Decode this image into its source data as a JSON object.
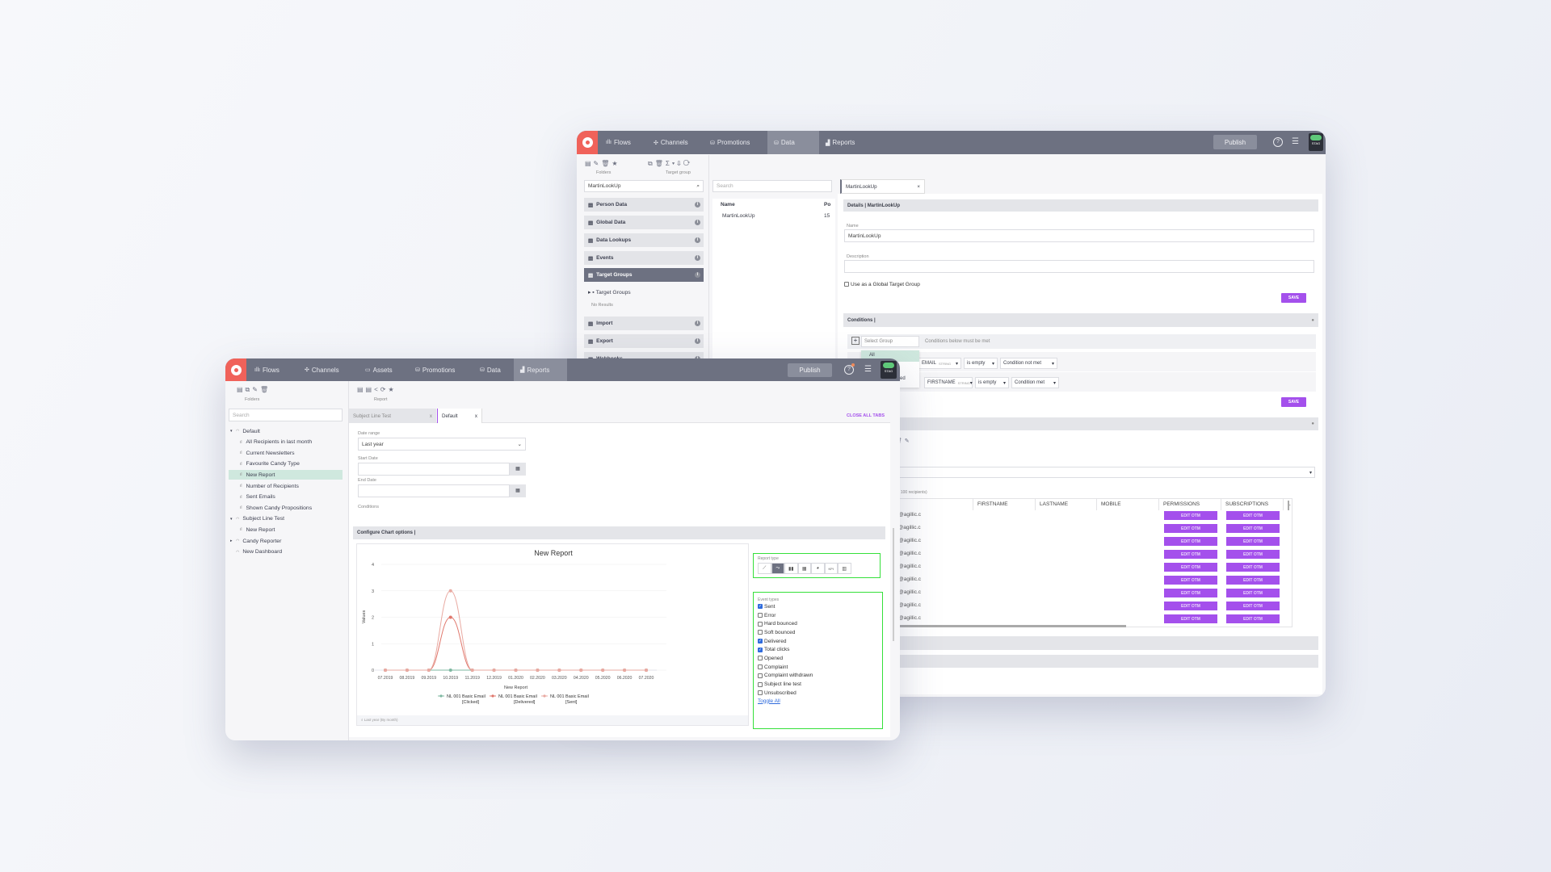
{
  "colors": {
    "nav": "#6d7181",
    "brand": "#f0625a",
    "accent": "#a450ec",
    "highlight": "#35e03a"
  },
  "back_window": {
    "nav": {
      "items": [
        {
          "label": "Flows",
          "icon": "flows-icon"
        },
        {
          "label": "Channels",
          "icon": "channels-icon"
        },
        {
          "label": "Promotions",
          "icon": "promotions-icon"
        },
        {
          "label": "Data",
          "icon": "data-icon",
          "active": true
        },
        {
          "label": "Reports",
          "icon": "reports-icon"
        }
      ],
      "publish": "Publish",
      "env": "STAG"
    },
    "toolbar": {
      "folders": "Folders",
      "target_group": "Target group"
    },
    "left": {
      "search_value": "MartinLookUp",
      "categories": [
        "Person Data",
        "Global Data",
        "Data Lookups",
        "Events",
        "Target Groups",
        "Import",
        "Export",
        "Webhooks"
      ],
      "active": "Target Groups",
      "tree_item": "Target Groups",
      "no_results": "No Results"
    },
    "list": {
      "search_placeholder": "Search",
      "col_name": "Name",
      "col_po": "Po",
      "rows": [
        {
          "name": "MartinLookUp",
          "po": "15"
        }
      ]
    },
    "detail": {
      "tab": "MartinLookUp",
      "details_header": "Details | MartinLookUp",
      "name_label": "Name",
      "name_value": "MartinLookUp",
      "description_label": "Description",
      "global_checkbox": "Use as a Global Target Group",
      "save": "SAVE",
      "conditions_header": "Conditions |",
      "select_group": "Select Group",
      "conditions_text": "Conditions below must be met",
      "dropdown_option": "All",
      "dropdown_partial": "ore failed",
      "condition_rows": [
        {
          "field": "EMAIL",
          "type": "STRING",
          "op": "is empty",
          "result": "Condition not met"
        },
        {
          "field": "FIRSTNAME",
          "type": "STRING",
          "op": "is empty",
          "result": "Condition met"
        }
      ],
      "max_note": "max 100 recipients)",
      "table": {
        "columns": [
          "EMAIL",
          "FIRSTNAME",
          "LASTNAME",
          "MOBILE",
          "PERMISSIONS",
          "SUBSCRIPTIONS",
          "L"
        ],
        "button": "EDIT OTM",
        "rows": [
          "agsupport10@agillic.c",
          "agsupport11@agillic.c",
          "agsupport12@agillic.c",
          "agsupport13@agillic.c",
          "agsupport14@agillic.c",
          "agsupport15@agillic.c",
          "agsupport16@agillic.c",
          "agsupport17@agillic.c",
          "agsupport18@agillic.c"
        ]
      }
    }
  },
  "front_window": {
    "nav": {
      "items": [
        {
          "label": "Flows",
          "icon": "flows-icon"
        },
        {
          "label": "Channels",
          "icon": "channels-icon"
        },
        {
          "label": "Assets",
          "icon": "assets-icon"
        },
        {
          "label": "Promotions",
          "icon": "promotions-icon"
        },
        {
          "label": "Data",
          "icon": "data-icon"
        },
        {
          "label": "Reports",
          "icon": "reports-icon",
          "active": true
        }
      ],
      "publish": "Publish",
      "env": "STAG"
    },
    "sidebar": {
      "toolbar_label": "Folders",
      "search_placeholder": "Search",
      "tree": [
        {
          "label": "Default",
          "level": 0,
          "kind": "folder",
          "expanded": true
        },
        {
          "label": "All Recipients in last month",
          "level": 1
        },
        {
          "label": "Current Newsletters",
          "level": 1
        },
        {
          "label": "Favourite Candy Type",
          "level": 1
        },
        {
          "label": "New Report",
          "level": 1,
          "selected": true
        },
        {
          "label": "Number of Recipients",
          "level": 1
        },
        {
          "label": "Sent Emails",
          "level": 1
        },
        {
          "label": "Shown Candy Propositions",
          "level": 1
        },
        {
          "label": "Subject Line Test",
          "level": 0,
          "kind": "folder",
          "expanded": true
        },
        {
          "label": "New Report",
          "level": 1
        },
        {
          "label": "Candy Reporter",
          "level": 0,
          "kind": "folder",
          "expanded": false
        },
        {
          "label": "New Dashboard",
          "level": 0,
          "kind": "dashboard"
        }
      ]
    },
    "main": {
      "toolbar_label": "Report",
      "tabs": [
        {
          "label": "Subject Line Test",
          "active": false
        },
        {
          "label": "Default",
          "active": true
        }
      ],
      "close_all": "CLOSE ALL TABS",
      "date_range_label": "Date range",
      "date_range_value": "Last year",
      "start_date_label": "Start Date",
      "end_date_label": "End Date",
      "conditions_label": "Conditions",
      "configure_header": "Configure Chart options |",
      "chart_footer": "Last year (By month)",
      "report_type_label": "Report type",
      "report_types": [
        "line",
        "spline",
        "bar",
        "table",
        "pie",
        "KPI",
        "columns"
      ],
      "report_type_active": "spline",
      "event_types_label": "Event types",
      "event_types": [
        {
          "label": "Sent",
          "checked": true
        },
        {
          "label": "Error",
          "checked": false
        },
        {
          "label": "Hard bounced",
          "checked": false
        },
        {
          "label": "Soft bounced",
          "checked": false
        },
        {
          "label": "Delivered",
          "checked": true
        },
        {
          "label": "Total clicks",
          "checked": true
        },
        {
          "label": "Opened",
          "checked": false
        },
        {
          "label": "Complaint",
          "checked": false
        },
        {
          "label": "Complaint withdrawn",
          "checked": false
        },
        {
          "label": "Subject line test",
          "checked": false
        },
        {
          "label": "Unsubscribed",
          "checked": false
        }
      ],
      "toggle_all": "Toggle All"
    }
  },
  "chart_data": {
    "type": "line",
    "title": "New Report",
    "xlabel": "New Report",
    "ylabel": "Values",
    "ylim": [
      0,
      4
    ],
    "yticks": [
      0,
      1,
      2,
      3,
      4
    ],
    "grid": true,
    "legend": "bottom",
    "categories": [
      "07.2019",
      "08.2019",
      "09.2019",
      "10.2019",
      "11.2019",
      "12.2019",
      "01.2020",
      "02.2020",
      "03.2020",
      "04.2020",
      "05.2020",
      "06.2020",
      "07.2020"
    ],
    "series": [
      {
        "name": "NL 001 Basic Email [Clicked]",
        "color": "#7fb8a2",
        "values": [
          0,
          0,
          0,
          0,
          0,
          0,
          0,
          0,
          0,
          0,
          0,
          0,
          0
        ]
      },
      {
        "name": "NL 001 Basic Email [Delivered]",
        "color": "#e0776c",
        "values": [
          0,
          0,
          0,
          2,
          0,
          0,
          0,
          0,
          0,
          0,
          0,
          0,
          0
        ]
      },
      {
        "name": "NL 001 Basic Email [Sent]",
        "color": "#e9aaa2",
        "values": [
          0,
          0,
          0,
          3,
          0,
          0,
          0,
          0,
          0,
          0,
          0,
          0,
          0
        ]
      }
    ]
  }
}
